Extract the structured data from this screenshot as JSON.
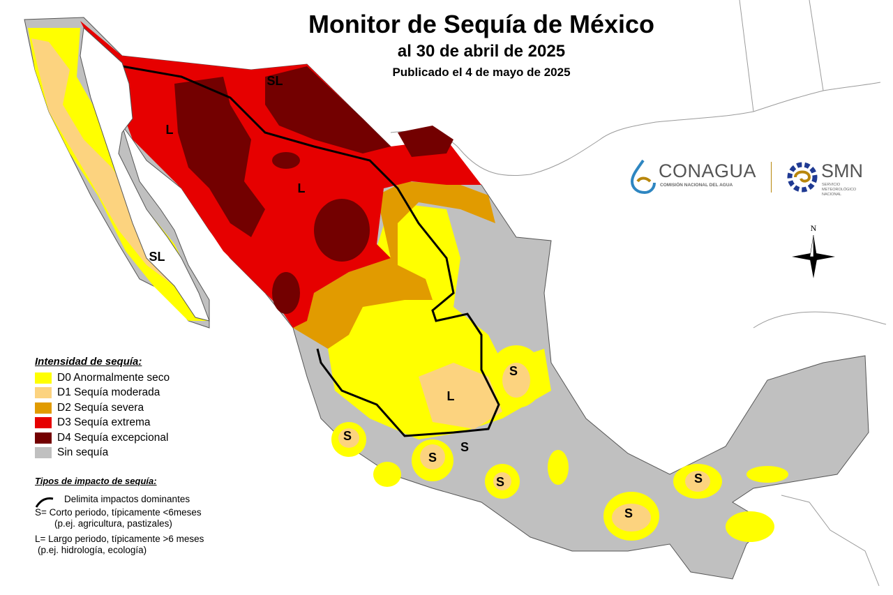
{
  "header": {
    "title": "Monitor de Sequía de México",
    "date_line": "al 30 de abril de 2025",
    "published": "Publicado el 4 de mayo de 2025"
  },
  "legend": {
    "heading": "Intensidad de sequía:",
    "items": [
      {
        "label": "D0 Anormalmente seco",
        "color": "#ffff00"
      },
      {
        "label": "D1 Sequía moderada",
        "color": "#fcd37f"
      },
      {
        "label": "D2 Sequía severa",
        "color": "#e19b00"
      },
      {
        "label": "D3 Sequía extrema",
        "color": "#e60000"
      },
      {
        "label": "D4 Sequía excepcional",
        "color": "#730000"
      },
      {
        "label": "Sin sequía",
        "color": "#c0c0c0"
      }
    ]
  },
  "impact_types": {
    "heading": "Tipos de impacto de sequía:",
    "line_label": "Delimita impactos dominantes",
    "short_line1": "S= Corto periodo, típicamente <6meses",
    "short_line2": "(p.ej. agricultura, pastizales)",
    "long_line1": "L= Largo periodo, típicamente >6 meses",
    "long_line2": "(p.ej. hidrología, ecología)"
  },
  "map_labels": [
    "SL",
    "L",
    "L",
    "SL",
    "L",
    "S",
    "S",
    "S",
    "S",
    "S",
    "S",
    "S"
  ],
  "compass": {
    "north": "N"
  },
  "logos": {
    "conagua": "CONAGUA",
    "conagua_sub": "COMISIÓN NACIONAL DEL AGUA",
    "smn": "SMN",
    "smn_sub": "SERVICIO METEOROLÓGICO NACIONAL"
  }
}
